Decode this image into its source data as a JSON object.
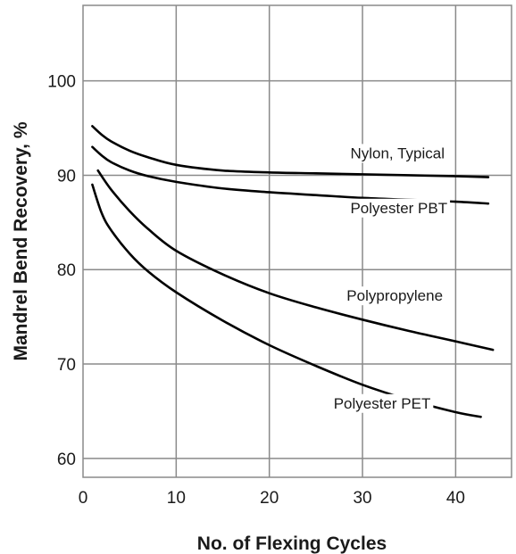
{
  "chart_data": {
    "type": "line",
    "xlabel": "No. of Flexing Cycles",
    "ylabel": "Mandrel Bend Recovery, %",
    "xlim": [
      0,
      46
    ],
    "ylim": [
      58,
      108
    ],
    "xticks": [
      0,
      10,
      20,
      30,
      40
    ],
    "yticks": [
      60,
      70,
      80,
      90,
      100
    ],
    "grid": true,
    "series": [
      {
        "name": "Nylon, Typical",
        "x": [
          1,
          2,
          3,
          5,
          7,
          10,
          15,
          20,
          25,
          30,
          35,
          40,
          43.5
        ],
        "y": [
          95.2,
          94.3,
          93.6,
          92.6,
          91.9,
          91.1,
          90.5,
          90.3,
          90.2,
          90.1,
          90.0,
          89.9,
          89.8
        ]
      },
      {
        "name": "Polyester PBT",
        "x": [
          1,
          2,
          3,
          5,
          7,
          10,
          15,
          20,
          25,
          30,
          35,
          40,
          43.5
        ],
        "y": [
          93.0,
          92.1,
          91.4,
          90.5,
          89.9,
          89.3,
          88.6,
          88.2,
          87.9,
          87.6,
          87.4,
          87.2,
          87.0
        ]
      },
      {
        "name": "Polypropylene",
        "x": [
          1.6,
          3,
          5,
          7,
          10,
          15,
          20,
          25,
          30,
          35,
          40,
          44
        ],
        "y": [
          90.5,
          88.5,
          86.2,
          84.3,
          82.0,
          79.5,
          77.5,
          76.0,
          74.7,
          73.5,
          72.4,
          71.5
        ]
      },
      {
        "name": "Polyester PET",
        "x": [
          1,
          2,
          3,
          5,
          7,
          10,
          15,
          20,
          25,
          30,
          35,
          40,
          42.7
        ],
        "y": [
          89.0,
          86.0,
          84.2,
          81.7,
          79.8,
          77.6,
          74.6,
          72.0,
          69.8,
          67.8,
          66.2,
          64.9,
          64.4
        ]
      }
    ],
    "annotations": [
      {
        "text": "Nylon, Typical",
        "x": 28.7,
        "y": 91.8
      },
      {
        "text": "Polyester PBT",
        "x": 28.7,
        "y": 86.0
      },
      {
        "text": "Polypropylene",
        "x": 28.3,
        "y": 76.7
      },
      {
        "text": "Polyester PET",
        "x": 26.9,
        "y": 65.3
      }
    ]
  }
}
